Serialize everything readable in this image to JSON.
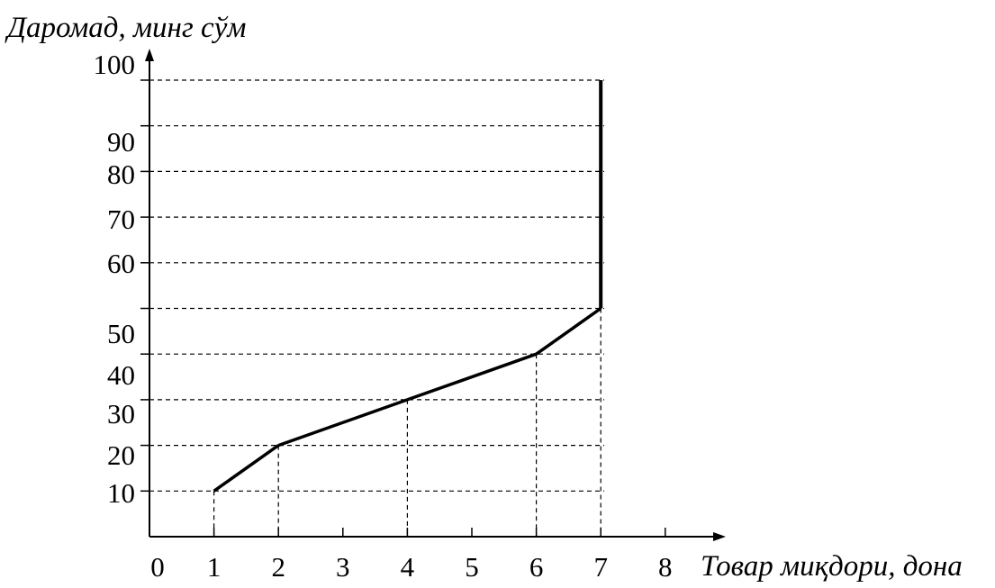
{
  "chart_data": {
    "type": "line",
    "title": "",
    "ylabel": "Даромад, минг сўм",
    "xlabel": "Товар миқдори, дона",
    "x_ticks": [
      "0",
      "1",
      "2",
      "3",
      "4",
      "5",
      "6",
      "7",
      "8"
    ],
    "y_ticks": [
      "100",
      "90",
      "80",
      "70",
      "60",
      "50",
      "40",
      "30",
      "20",
      "10"
    ],
    "y_gridline_levels": [
      10,
      20,
      30,
      40,
      50,
      60,
      70,
      80,
      90,
      100
    ],
    "xlim": [
      0,
      8.9
    ],
    "ylim": [
      0,
      100
    ],
    "grid": "dashed reference lines",
    "series": [
      {
        "values": [
          {
            "x": 1,
            "y": 10
          },
          {
            "x": 2,
            "y": 20
          },
          {
            "x": 4,
            "y": 30
          },
          {
            "x": 6,
            "y": 40
          },
          {
            "x": 7,
            "y": 50
          },
          {
            "x": 7,
            "y": 100
          }
        ]
      }
    ],
    "dropline_x": [
      1,
      2,
      4,
      6,
      7
    ],
    "colors": {
      "line": "#000000",
      "axis": "#000000",
      "grid": "#000000",
      "background": "#ffffff"
    }
  }
}
